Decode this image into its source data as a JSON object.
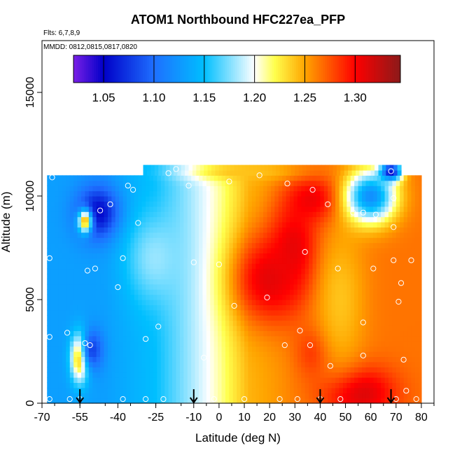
{
  "chart_data": {
    "type": "heatmap",
    "title": "ATOM1 Northbound HFC227ea_PFP",
    "flights_note": "Flts: 6,7,8,9",
    "dates_note": "MMDD: 0812,0815,0817,0820",
    "xlabel": "Latitude (deg N)",
    "ylabel": "Altitude (m)",
    "xlim": [
      -70,
      85
    ],
    "ylim": [
      0,
      17500
    ],
    "x_ticks": [
      -70,
      -55,
      -40,
      -25,
      -10,
      0,
      10,
      20,
      30,
      40,
      50,
      60,
      70,
      80
    ],
    "x_tick_labels": [
      "-70",
      "-55",
      "-40",
      "-25",
      "-10",
      "0",
      "10",
      "20",
      "30",
      "40",
      "50",
      "60",
      "70",
      "80"
    ],
    "y_ticks": [
      0,
      5000,
      10000,
      15000
    ],
    "y_tick_labels": [
      "0",
      "5000",
      "10000",
      "15000"
    ],
    "colorbar": {
      "range": [
        1.02,
        1.345
      ],
      "ticks": [
        1.05,
        1.1,
        1.15,
        1.2,
        1.25,
        1.3
      ],
      "tick_labels": [
        "1.05",
        "1.10",
        "1.15",
        "1.20",
        "1.25",
        "1.30"
      ],
      "colors": [
        "#7a1fe6",
        "#0000c8",
        "#1e6fff",
        "#00bfff",
        "#ffffff",
        "#ffff4d",
        "#ffa500",
        "#ff0000",
        "#8b1a1a"
      ],
      "stops": [
        1.02,
        1.05,
        1.1,
        1.15,
        1.2,
        1.22,
        1.25,
        1.3,
        1.345
      ]
    },
    "field_extent": {
      "lat": [
        -68,
        80
      ],
      "alt": [
        0,
        11000
      ]
    },
    "field_top_extension": {
      "lat": [
        -30,
        72
      ],
      "alt": [
        11000,
        11500
      ]
    },
    "anomalies": [
      {
        "lat": -48,
        "alt": 9200,
        "value": 1.05,
        "sx": 6,
        "sy": 900
      },
      {
        "lat": -53,
        "alt": 8800,
        "value": 1.25,
        "sx": 2,
        "sy": 400
      },
      {
        "lat": -55,
        "alt": 2200,
        "value": 1.26,
        "sx": 2.5,
        "sy": 800
      },
      {
        "lat": -50,
        "alt": 2600,
        "value": 1.08,
        "sx": 3,
        "sy": 700
      },
      {
        "lat": -25,
        "alt": 7000,
        "value": 1.18,
        "sx": 8,
        "sy": 1500
      },
      {
        "lat": 20,
        "alt": 6000,
        "value": 1.31,
        "sx": 10,
        "sy": 1500
      },
      {
        "lat": 30,
        "alt": 7500,
        "value": 1.31,
        "sx": 7,
        "sy": 1500
      },
      {
        "lat": 38,
        "alt": 9800,
        "value": 1.31,
        "sx": 8,
        "sy": 800
      },
      {
        "lat": 55,
        "alt": 500,
        "value": 1.32,
        "sx": 10,
        "sy": 900
      },
      {
        "lat": 38,
        "alt": 2500,
        "value": 1.29,
        "sx": 5,
        "sy": 900
      },
      {
        "lat": 48,
        "alt": 5000,
        "value": 1.24,
        "sx": 7,
        "sy": 2500
      },
      {
        "lat": 60,
        "alt": 10000,
        "value": 1.12,
        "sx": 7,
        "sy": 900
      },
      {
        "lat": 68,
        "alt": 11200,
        "value": 1.05,
        "sx": 3,
        "sy": 300
      },
      {
        "lat": 10,
        "alt": 11200,
        "value": 1.24,
        "sx": 15,
        "sy": 300
      }
    ],
    "samples": [
      {
        "lat": -67,
        "alt": 200
      },
      {
        "lat": -67,
        "alt": 3200
      },
      {
        "lat": -67,
        "alt": 7000
      },
      {
        "lat": -66,
        "alt": 10900
      },
      {
        "lat": -60,
        "alt": 3400
      },
      {
        "lat": -59,
        "alt": 200
      },
      {
        "lat": -55,
        "alt": 200
      },
      {
        "lat": -53,
        "alt": 2900
      },
      {
        "lat": -51,
        "alt": 2800
      },
      {
        "lat": -52,
        "alt": 6400
      },
      {
        "lat": -49,
        "alt": 6500
      },
      {
        "lat": -47,
        "alt": 9300
      },
      {
        "lat": -43,
        "alt": 9600
      },
      {
        "lat": -40,
        "alt": 5600
      },
      {
        "lat": -38,
        "alt": 7000
      },
      {
        "lat": -36,
        "alt": 10500
      },
      {
        "lat": -34,
        "alt": 10300
      },
      {
        "lat": -32,
        "alt": 8700
      },
      {
        "lat": -29,
        "alt": 3100
      },
      {
        "lat": -24,
        "alt": 3700
      },
      {
        "lat": -38,
        "alt": 200
      },
      {
        "lat": -29,
        "alt": 200
      },
      {
        "lat": -22,
        "alt": 200
      },
      {
        "lat": -20,
        "alt": 11100
      },
      {
        "lat": -17,
        "alt": 11300
      },
      {
        "lat": -12,
        "alt": 10500
      },
      {
        "lat": -10,
        "alt": 6800
      },
      {
        "lat": -6,
        "alt": 2200
      },
      {
        "lat": -2,
        "alt": 200
      },
      {
        "lat": 0,
        "alt": 6700
      },
      {
        "lat": 4,
        "alt": 10700
      },
      {
        "lat": 6,
        "alt": 4700
      },
      {
        "lat": 10,
        "alt": 200
      },
      {
        "lat": 16,
        "alt": 11000
      },
      {
        "lat": 19,
        "alt": 5100
      },
      {
        "lat": 24,
        "alt": 200
      },
      {
        "lat": 26,
        "alt": 2800
      },
      {
        "lat": 27,
        "alt": 10600
      },
      {
        "lat": 31,
        "alt": 200
      },
      {
        "lat": 32,
        "alt": 3500
      },
      {
        "lat": 34,
        "alt": 7300
      },
      {
        "lat": 36,
        "alt": 2800
      },
      {
        "lat": 37,
        "alt": 10300
      },
      {
        "lat": 40,
        "alt": 200
      },
      {
        "lat": 43,
        "alt": 9600
      },
      {
        "lat": 44,
        "alt": 1800
      },
      {
        "lat": 47,
        "alt": 6500
      },
      {
        "lat": 48,
        "alt": 200
      },
      {
        "lat": 53,
        "alt": 9200
      },
      {
        "lat": 57,
        "alt": 2300
      },
      {
        "lat": 57,
        "alt": 3900
      },
      {
        "lat": 57,
        "alt": 9200
      },
      {
        "lat": 61,
        "alt": 6500
      },
      {
        "lat": 62,
        "alt": 9100
      },
      {
        "lat": 68,
        "alt": 11200
      },
      {
        "lat": 69,
        "alt": 9900
      },
      {
        "lat": 69,
        "alt": 8500
      },
      {
        "lat": 69,
        "alt": 6900
      },
      {
        "lat": 70,
        "alt": 200
      },
      {
        "lat": 71,
        "alt": 4900
      },
      {
        "lat": 72,
        "alt": 5800
      },
      {
        "lat": 73,
        "alt": 2100
      },
      {
        "lat": 74,
        "alt": 600
      },
      {
        "lat": 76,
        "alt": 6900
      },
      {
        "lat": 78,
        "alt": 200
      }
    ],
    "flight_arrows": [
      -55,
      -10,
      40,
      68
    ]
  }
}
